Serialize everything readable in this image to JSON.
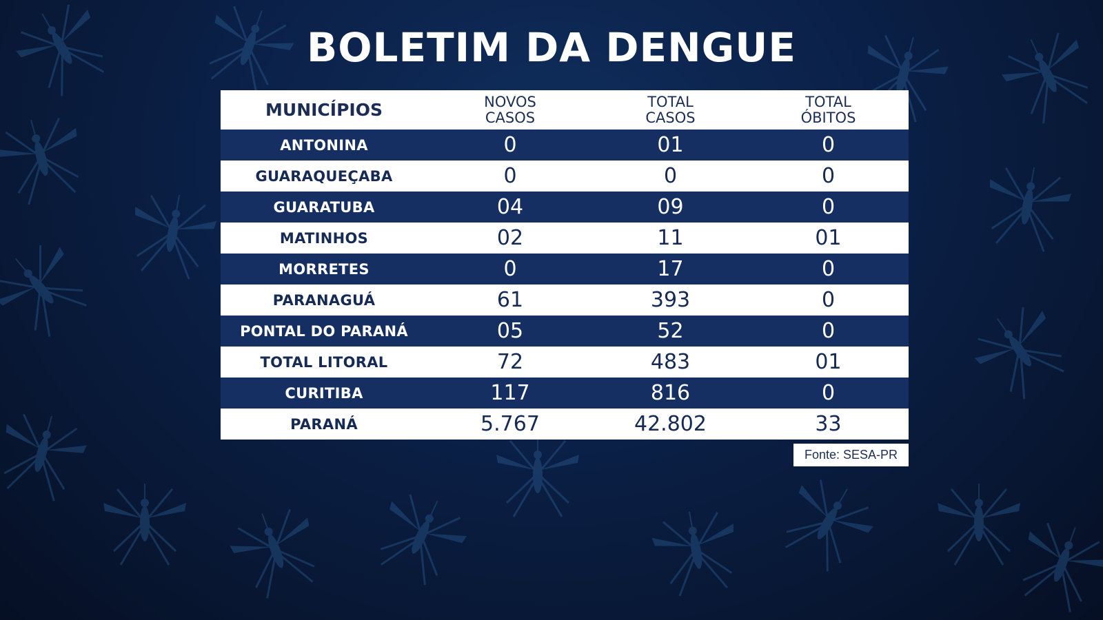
{
  "title": "BOLETIM DA DENGUE",
  "source": "Fonte: SESA-PR",
  "colors": {
    "dark_row": "#152f63",
    "light_row": "#ffffff",
    "background": "#0b2149",
    "header_text": "#1c2d55"
  },
  "background_icons": "mosquito-silhouette-icon",
  "chart_data": {
    "type": "table",
    "columns": [
      {
        "key": "municipio",
        "lines": [
          "MUNICÍPIOS"
        ]
      },
      {
        "key": "novos_casos",
        "lines": [
          "NOVOS",
          "CASOS"
        ]
      },
      {
        "key": "total_casos",
        "lines": [
          "TOTAL",
          "CASOS"
        ]
      },
      {
        "key": "total_obitos",
        "lines": [
          "TOTAL",
          "ÓBITOS"
        ]
      }
    ],
    "rows": [
      {
        "name": "ANTONINA",
        "novos": "0",
        "total": "01",
        "obitos": "0"
      },
      {
        "name": "GUARAQUEÇABA",
        "novos": "0",
        "total": "0",
        "obitos": "0"
      },
      {
        "name": "GUARATUBA",
        "novos": "04",
        "total": "09",
        "obitos": "0"
      },
      {
        "name": "MATINHOS",
        "novos": "02",
        "total": "11",
        "obitos": "01"
      },
      {
        "name": "MORRETES",
        "novos": "0",
        "total": "17",
        "obitos": "0"
      },
      {
        "name": "PARANAGUÁ",
        "novos": "61",
        "total": "393",
        "obitos": "0"
      },
      {
        "name": "PONTAL DO PARANÁ",
        "novos": "05",
        "total": "52",
        "obitos": "0"
      },
      {
        "name": "TOTAL LITORAL",
        "novos": "72",
        "total": "483",
        "obitos": "01"
      },
      {
        "name": "CURITIBA",
        "novos": "117",
        "total": "816",
        "obitos": "0"
      },
      {
        "name": "PARANÁ",
        "novos": "5.767",
        "total": "42.802",
        "obitos": "33"
      }
    ]
  }
}
